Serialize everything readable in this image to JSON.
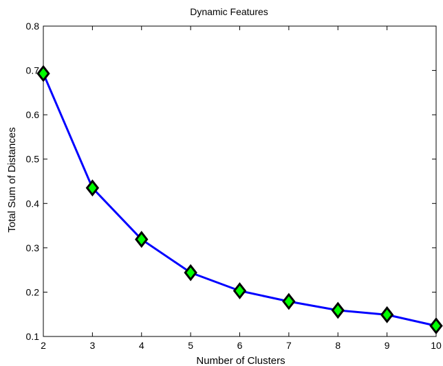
{
  "chart_data": {
    "type": "line",
    "title": "Dynamic Features",
    "xlabel": "Number of Clusters",
    "ylabel": "Total Sum of Distances",
    "xlim": [
      2,
      10
    ],
    "ylim": [
      0.1,
      0.8
    ],
    "xticks": [
      2,
      3,
      4,
      5,
      6,
      7,
      8,
      9,
      10
    ],
    "yticks": [
      0.1,
      0.2,
      0.3,
      0.4,
      0.5,
      0.6,
      0.7,
      0.8
    ],
    "grid": false,
    "legend": null,
    "series": [
      {
        "x": [
          2,
          3,
          4,
          5,
          6,
          7,
          8,
          9,
          10
        ],
        "values": [
          0.693,
          0.435,
          0.319,
          0.244,
          0.203,
          0.179,
          0.159,
          0.149,
          0.124
        ],
        "line_color": "#0000ff",
        "marker": "diamond",
        "marker_fill": "#00ff00",
        "marker_edge": "#000000"
      }
    ]
  }
}
